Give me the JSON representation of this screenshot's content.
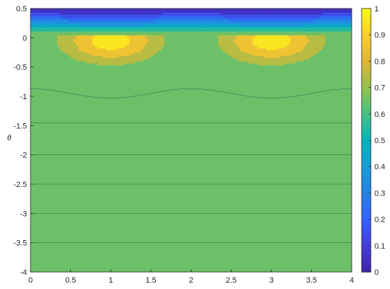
{
  "chart_data": {
    "type": "contourf",
    "title": "",
    "xlabel": "",
    "ylabel": "θ",
    "xlim": [
      0,
      4
    ],
    "ylim": [
      -4,
      0.5
    ],
    "x_ticks": [
      0,
      0.5,
      1,
      1.5,
      2,
      2.5,
      3,
      3.5,
      4
    ],
    "y_ticks": [
      0.5,
      0,
      -0.5,
      -1,
      -1.5,
      -2,
      -2.5,
      -3,
      -3.5,
      -4
    ],
    "colorbar": {
      "colormap": "parula",
      "range": [
        0,
        1
      ],
      "ticks": [
        0,
        0.1,
        0.2,
        0.3,
        0.4,
        0.5,
        0.6,
        0.7,
        0.8,
        0.9,
        1
      ]
    },
    "contour_levels": [
      0,
      0.1,
      0.2,
      0.3,
      0.4,
      0.5,
      0.6,
      0.7,
      0.8,
      0.9,
      1
    ],
    "features": {
      "horizontal_band_boundaries_y": [
        -3.5,
        -3.0,
        -2.5,
        -2.0,
        -1.45
      ],
      "wavy_contour_0_6": {
        "mean_y": -0.95,
        "amplitude": 0.08,
        "period_x": 2
      },
      "peak_centers_x": [
        1,
        3
      ],
      "peak_center_y": -0.05,
      "peak_max_value": 0.95
    }
  }
}
